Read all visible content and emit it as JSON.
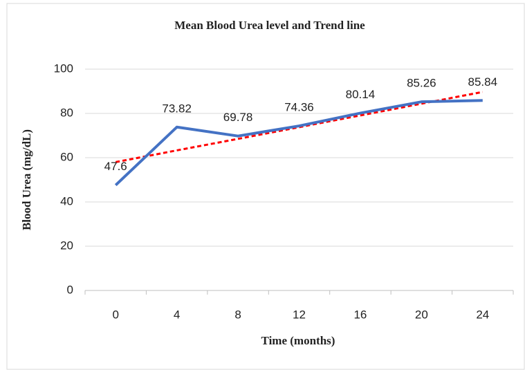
{
  "chart_data": {
    "type": "line",
    "title": "Mean Blood Urea level and Trend line",
    "x_label": "Time (months)",
    "y_label": "Blood Urea (mg/dL)",
    "categories": [
      "0",
      "4",
      "8",
      "12",
      "16",
      "20",
      "24"
    ],
    "series": [
      {
        "color": "#4472c4",
        "dash": false,
        "values": [
          47.6,
          73.82,
          69.78,
          74.36,
          80.14,
          85.26,
          85.84
        ],
        "show_labels": true
      },
      {
        "color": "#ff0000",
        "dash": true,
        "values": [
          58.0,
          63.3,
          68.5,
          73.8,
          79.1,
          84.4,
          89.7
        ],
        "show_labels": false
      }
    ],
    "ylim": [
      0,
      100
    ],
    "yticks": [
      0,
      20,
      40,
      60,
      80,
      100
    ],
    "grid": true
  }
}
